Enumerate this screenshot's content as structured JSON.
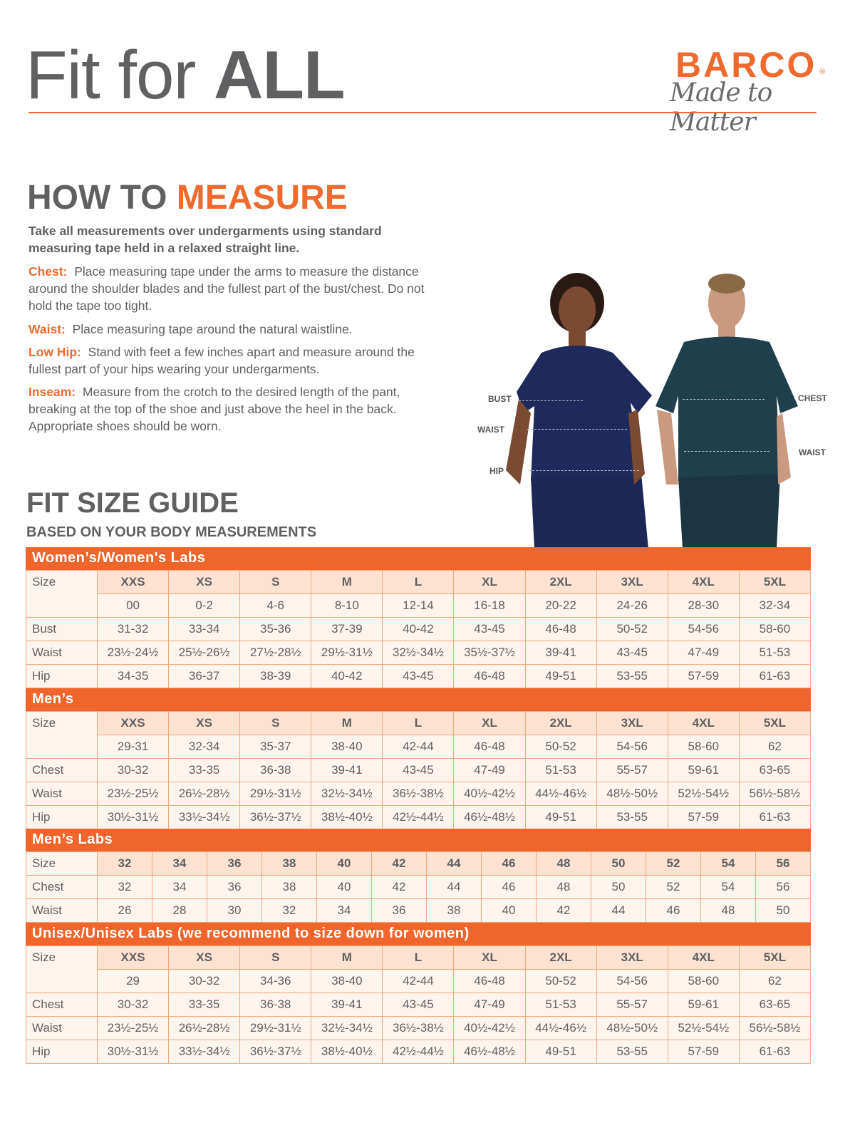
{
  "header": {
    "title_light": "Fit for ",
    "title_bold": "ALL",
    "logo": {
      "brand": "BARCO",
      "registered": "®",
      "tagline": "Made to Matter"
    }
  },
  "measure": {
    "title_a": "HOW TO ",
    "title_b": "MEASURE",
    "intro": "Take all measurements over undergarments using standard measuring tape held in a relaxed straight line.",
    "items": [
      {
        "label": "Chest:",
        "text": "Place measuring tape under the arms to measure the distance around the shoulder blades and the fullest part of the bust/chest. Do not hold the tape too tight."
      },
      {
        "label": "Waist:",
        "text": "Place measuring tape around the natural waistline."
      },
      {
        "label": "Low Hip:",
        "text": "Stand with feet a few inches apart and measure around the fullest part of your hips wearing your undergarments."
      },
      {
        "label": "Inseam:",
        "text": "Measure from the crotch to the desired length of the pant, breaking at the top of the shoe and just above the heel in the back. Appropriate shoes should be worn."
      }
    ]
  },
  "figure_labels": {
    "bust": "BUST",
    "waist_w": "WAIST",
    "hip": "HIP",
    "chest": "CHEST",
    "waist_m": "WAIST"
  },
  "guide": {
    "title": "FIT SIZE GUIDE",
    "subtitle": "BASED ON YOUR BODY MEASUREMENTS"
  },
  "colors": {
    "accent": "#f0652b",
    "header_cell": "#fde2d2",
    "cell": "#fef4ee",
    "border": "#f5a77f"
  },
  "tables": [
    {
      "title": "Women’s/Women's Labs",
      "rows": [
        [
          "Size",
          "XXS",
          "XS",
          "S",
          "M",
          "L",
          "XL",
          "2XL",
          "3XL",
          "4XL",
          "5XL"
        ],
        [
          "",
          "00",
          "0-2",
          "4-6",
          "8-10",
          "12-14",
          "16-18",
          "20-22",
          "24-26",
          "28-30",
          "32-34"
        ],
        [
          "Bust",
          "31-32",
          "33-34",
          "35-36",
          "37-39",
          "40-42",
          "43-45",
          "46-48",
          "50-52",
          "54-56",
          "58-60"
        ],
        [
          "Waist",
          "23½-24½",
          "25½-26½",
          "27½-28½",
          "29½-31½",
          "32½-34½",
          "35½-37½",
          "39-41",
          "43-45",
          "47-49",
          "51-53"
        ],
        [
          "Hip",
          "34-35",
          "36-37",
          "38-39",
          "40-42",
          "43-45",
          "46-48",
          "49-51",
          "53-55",
          "57-59",
          "61-63"
        ]
      ]
    },
    {
      "title": "Men’s",
      "rows": [
        [
          "Size",
          "XXS",
          "XS",
          "S",
          "M",
          "L",
          "XL",
          "2XL",
          "3XL",
          "4XL",
          "5XL"
        ],
        [
          "",
          "29-31",
          "32-34",
          "35-37",
          "38-40",
          "42-44",
          "46-48",
          "50-52",
          "54-56",
          "58-60",
          "62"
        ],
        [
          "Chest",
          "30-32",
          "33-35",
          "36-38",
          "39-41",
          "43-45",
          "47-49",
          "51-53",
          "55-57",
          "59-61",
          "63-65"
        ],
        [
          "Waist",
          "23½-25½",
          "26½-28½",
          "29½-31½",
          "32½-34½",
          "36½-38½",
          "40½-42½",
          "44½-46½",
          "48½-50½",
          "52½-54½",
          "56½-58½"
        ],
        [
          "Hip",
          "30½-31½",
          "33½-34½",
          "36½-37½",
          "38½-40½",
          "42½-44½",
          "46½-48½",
          "49-51",
          "53-55",
          "57-59",
          "61-63"
        ]
      ]
    },
    {
      "title": "Men’s Labs",
      "rows": [
        [
          "Size",
          "32",
          "34",
          "36",
          "38",
          "40",
          "42",
          "44",
          "46",
          "48",
          "50",
          "52",
          "54",
          "56"
        ],
        [
          "Chest",
          "32",
          "34",
          "36",
          "38",
          "40",
          "42",
          "44",
          "46",
          "48",
          "50",
          "52",
          "54",
          "56"
        ],
        [
          "Waist",
          "26",
          "28",
          "30",
          "32",
          "34",
          "36",
          "38",
          "40",
          "42",
          "44",
          "46",
          "48",
          "50"
        ]
      ]
    },
    {
      "title": "Unisex/Unisex Labs (we recommend to size down for women)",
      "rows": [
        [
          "Size",
          "XXS",
          "XS",
          "S",
          "M",
          "L",
          "XL",
          "2XL",
          "3XL",
          "4XL",
          "5XL"
        ],
        [
          "",
          "29",
          "30-32",
          "34-36",
          "38-40",
          "42-44",
          "46-48",
          "50-52",
          "54-56",
          "58-60",
          "62"
        ],
        [
          "Chest",
          "30-32",
          "33-35",
          "36-38",
          "39-41",
          "43-45",
          "47-49",
          "51-53",
          "55-57",
          "59-61",
          "63-65"
        ],
        [
          "Waist",
          "23½-25½",
          "26½-28½",
          "29½-31½",
          "32½-34½",
          "36½-38½",
          "40½-42½",
          "44½-46½",
          "48½-50½",
          "52½-54½",
          "56½-58½"
        ],
        [
          "Hip",
          "30½-31½",
          "33½-34½",
          "36½-37½",
          "38½-40½",
          "42½-44½",
          "46½-48½",
          "49-51",
          "53-55",
          "57-59",
          "61-63"
        ]
      ]
    }
  ]
}
